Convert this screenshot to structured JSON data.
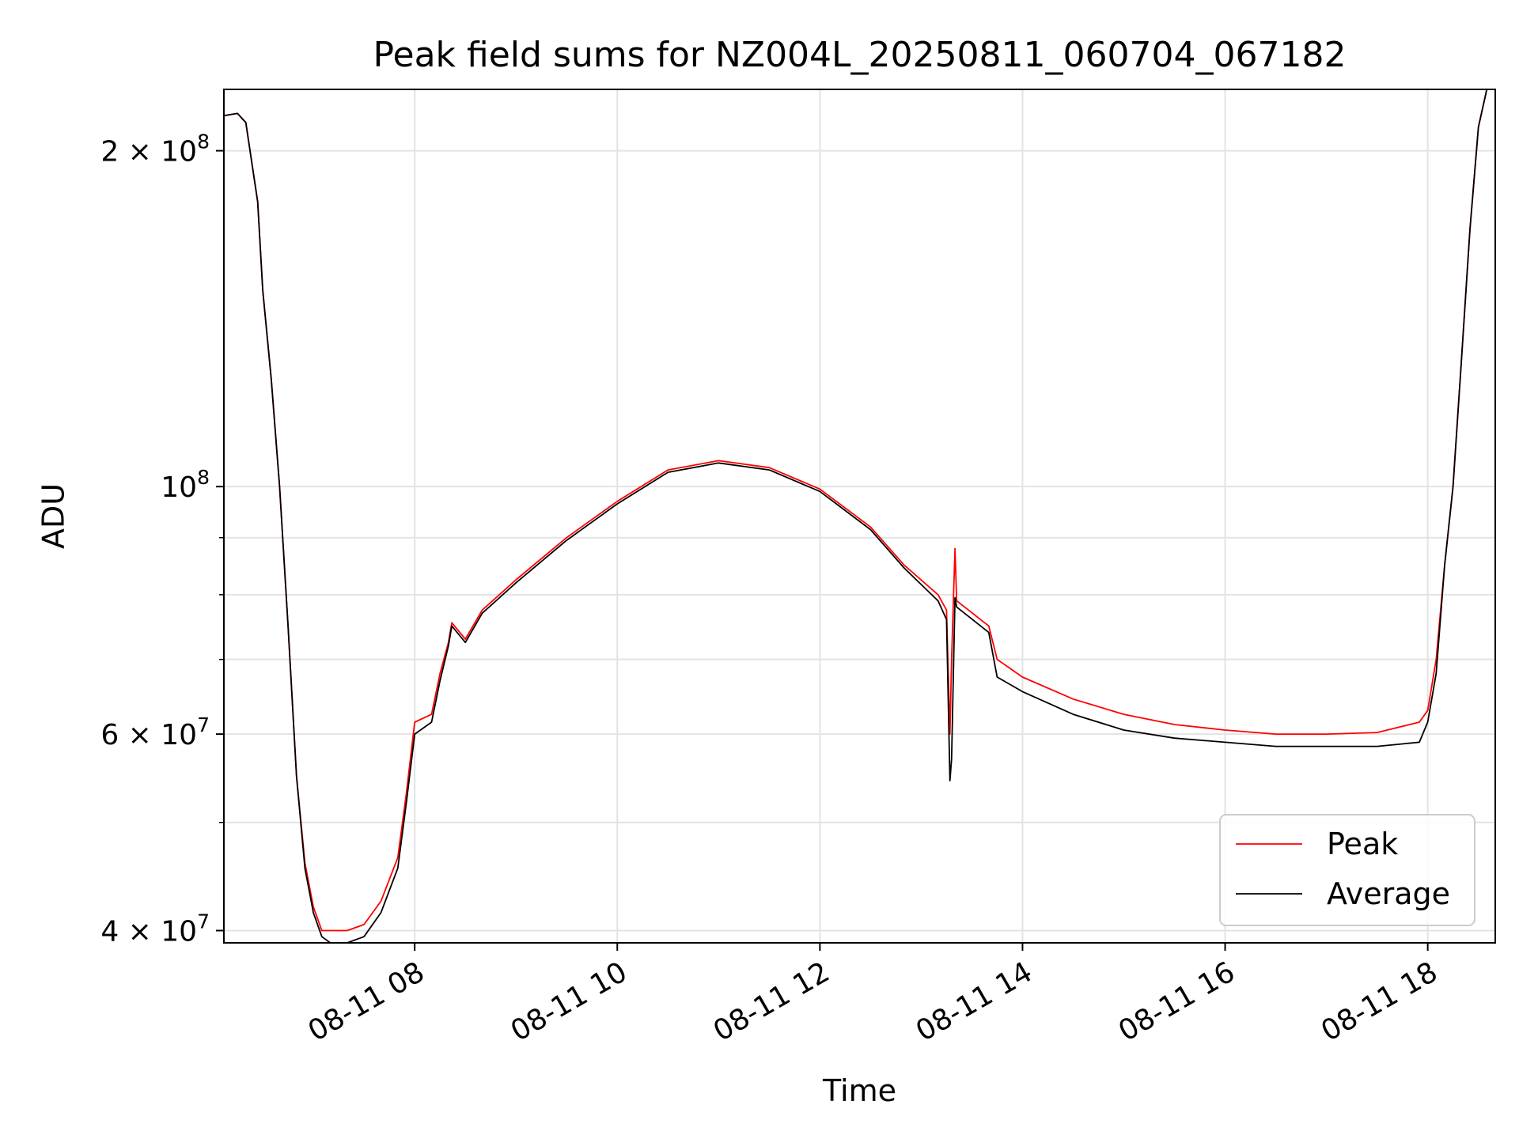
{
  "chart_data": {
    "type": "line",
    "title": "Peak field sums for NZ004L_20250811_060704_067182",
    "xlabel": "Time",
    "ylabel": "ADU",
    "yscale": "log",
    "grid": true,
    "legend_position": "lower-right",
    "x_unit": "hour of 2025-08-11",
    "xlim": [
      "2025-08-11 06:07",
      "2025-08-11 18:40"
    ],
    "ylim": [
      39000000,
      227000000
    ],
    "x_ticks": [
      {
        "x": "2025-08-11 08:00",
        "label": "08-11 08"
      },
      {
        "x": "2025-08-11 10:00",
        "label": "08-11 10"
      },
      {
        "x": "2025-08-11 12:00",
        "label": "08-11 12"
      },
      {
        "x": "2025-08-11 14:00",
        "label": "08-11 14"
      },
      {
        "x": "2025-08-11 16:00",
        "label": "08-11 16"
      },
      {
        "x": "2025-08-11 18:00",
        "label": "08-11 18"
      }
    ],
    "y_major_ticks": [
      {
        "value": 40000000,
        "mantissa": "4",
        "exponent": "7"
      },
      {
        "value": 60000000,
        "mantissa": "6",
        "exponent": "7"
      },
      {
        "value": 100000000,
        "mantissa": "",
        "exponent": "8"
      },
      {
        "value": 200000000,
        "mantissa": "2",
        "exponent": "8"
      }
    ],
    "y_minor_ticks": [
      50000000,
      70000000,
      80000000,
      90000000
    ],
    "series": [
      {
        "name": "Peak",
        "color": "#ff0000",
        "x": [
          "2025-08-11 06:07",
          "2025-08-11 06:15",
          "2025-08-11 06:20",
          "2025-08-11 06:27",
          "2025-08-11 06:30",
          "2025-08-11 06:35",
          "2025-08-11 06:40",
          "2025-08-11 06:45",
          "2025-08-11 06:50",
          "2025-08-11 06:55",
          "2025-08-11 07:00",
          "2025-08-11 07:05",
          "2025-08-11 07:10",
          "2025-08-11 07:20",
          "2025-08-11 07:30",
          "2025-08-11 07:40",
          "2025-08-11 07:50",
          "2025-08-11 07:55",
          "2025-08-11 08:00",
          "2025-08-11 08:10",
          "2025-08-11 08:15",
          "2025-08-11 08:20",
          "2025-08-11 08:22",
          "2025-08-11 08:30",
          "2025-08-11 08:40",
          "2025-08-11 09:00",
          "2025-08-11 09:30",
          "2025-08-11 10:00",
          "2025-08-11 10:30",
          "2025-08-11 11:00",
          "2025-08-11 11:30",
          "2025-08-11 12:00",
          "2025-08-11 12:30",
          "2025-08-11 12:50",
          "2025-08-11 13:10",
          "2025-08-11 13:15",
          "2025-08-11 13:17",
          "2025-08-11 13:18",
          "2025-08-11 13:20",
          "2025-08-11 13:21",
          "2025-08-11 13:40",
          "2025-08-11 13:45",
          "2025-08-11 14:00",
          "2025-08-11 14:30",
          "2025-08-11 15:00",
          "2025-08-11 15:30",
          "2025-08-11 16:00",
          "2025-08-11 16:30",
          "2025-08-11 17:00",
          "2025-08-11 17:30",
          "2025-08-11 17:55",
          "2025-08-11 18:00",
          "2025-08-11 18:05",
          "2025-08-11 18:10",
          "2025-08-11 18:15",
          "2025-08-11 18:20",
          "2025-08-11 18:25",
          "2025-08-11 18:30",
          "2025-08-11 18:35",
          "2025-08-11 18:40"
        ],
        "values": [
          215000000,
          216000000,
          212000000,
          180000000,
          150000000,
          125000000,
          100000000,
          75000000,
          55000000,
          46000000,
          42000000,
          40000000,
          40000000,
          40000000,
          40500000,
          42500000,
          46500000,
          53000000,
          61500000,
          62500000,
          68000000,
          72500000,
          75500000,
          73000000,
          77500000,
          82500000,
          90000000,
          97000000,
          103500000,
          105500000,
          104000000,
          99500000,
          92000000,
          85000000,
          80000000,
          77500000,
          60000000,
          70000000,
          88000000,
          79000000,
          75000000,
          70000000,
          67500000,
          64500000,
          62500000,
          61200000,
          60500000,
          60000000,
          60000000,
          60200000,
          61500000,
          63000000,
          70000000,
          85000000,
          100000000,
          130000000,
          170000000,
          210000000,
          227000000,
          227000000
        ]
      },
      {
        "name": "Average",
        "color": "#000000",
        "x": [
          "2025-08-11 06:07",
          "2025-08-11 06:15",
          "2025-08-11 06:20",
          "2025-08-11 06:27",
          "2025-08-11 06:30",
          "2025-08-11 06:35",
          "2025-08-11 06:40",
          "2025-08-11 06:45",
          "2025-08-11 06:50",
          "2025-08-11 06:55",
          "2025-08-11 07:00",
          "2025-08-11 07:05",
          "2025-08-11 07:10",
          "2025-08-11 07:20",
          "2025-08-11 07:30",
          "2025-08-11 07:40",
          "2025-08-11 07:50",
          "2025-08-11 07:55",
          "2025-08-11 08:00",
          "2025-08-11 08:10",
          "2025-08-11 08:15",
          "2025-08-11 08:20",
          "2025-08-11 08:22",
          "2025-08-11 08:30",
          "2025-08-11 08:40",
          "2025-08-11 09:00",
          "2025-08-11 09:30",
          "2025-08-11 10:00",
          "2025-08-11 10:30",
          "2025-08-11 11:00",
          "2025-08-11 11:30",
          "2025-08-11 12:00",
          "2025-08-11 12:30",
          "2025-08-11 12:50",
          "2025-08-11 13:10",
          "2025-08-11 13:15",
          "2025-08-11 13:17",
          "2025-08-11 13:18",
          "2025-08-11 13:20",
          "2025-08-11 13:21",
          "2025-08-11 13:40",
          "2025-08-11 13:45",
          "2025-08-11 14:00",
          "2025-08-11 14:30",
          "2025-08-11 15:00",
          "2025-08-11 15:30",
          "2025-08-11 16:00",
          "2025-08-11 16:30",
          "2025-08-11 17:00",
          "2025-08-11 17:30",
          "2025-08-11 17:55",
          "2025-08-11 18:00",
          "2025-08-11 18:05",
          "2025-08-11 18:10",
          "2025-08-11 18:15",
          "2025-08-11 18:20",
          "2025-08-11 18:25",
          "2025-08-11 18:30",
          "2025-08-11 18:35",
          "2025-08-11 18:40"
        ],
        "values": [
          215000000,
          216000000,
          212000000,
          180000000,
          150000000,
          125000000,
          100000000,
          75000000,
          55000000,
          45500000,
          41500000,
          39500000,
          39000000,
          39000000,
          39500000,
          41500000,
          45500000,
          52000000,
          60000000,
          61500000,
          67000000,
          72000000,
          75000000,
          72500000,
          77000000,
          82000000,
          89500000,
          96500000,
          103000000,
          105000000,
          103500000,
          99000000,
          91500000,
          84500000,
          79000000,
          76000000,
          54500000,
          57000000,
          79500000,
          78000000,
          74000000,
          67500000,
          65500000,
          62500000,
          60500000,
          59500000,
          59000000,
          58500000,
          58500000,
          58500000,
          59000000,
          61500000,
          68000000,
          85000000,
          100000000,
          130000000,
          170000000,
          210000000,
          227000000,
          227000000
        ]
      }
    ]
  }
}
